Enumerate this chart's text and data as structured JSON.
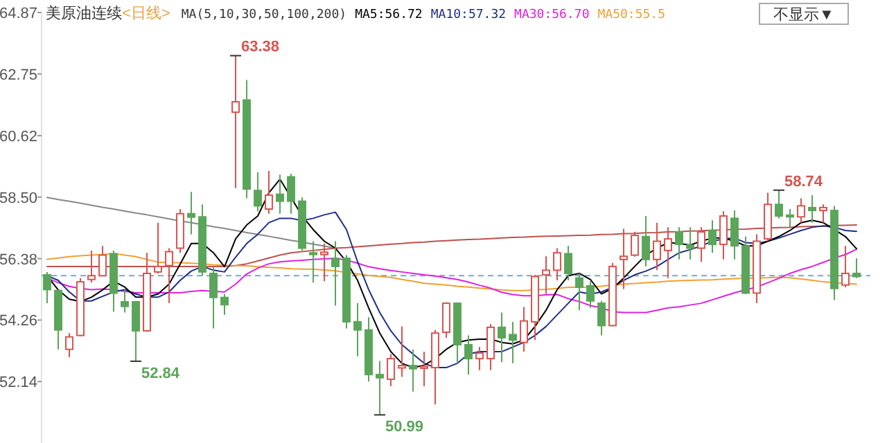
{
  "chart_data": {
    "type": "candlestick",
    "title": "美原油连续",
    "subtitle": "<日线>",
    "legend_title": "MA(5,10,30,50,100,200)",
    "legend": "top",
    "tick_labels": "y",
    "ylim": [
      50.02,
      64.87
    ],
    "yticks": [
      52.14,
      54.26,
      56.38,
      {
        "value": 58.5,
        "label": "58.50"
      },
      60.62,
      62.75,
      64.87
    ],
    "categories": [
      null,
      null,
      null,
      null,
      null,
      null,
      null,
      null,
      null,
      null,
      null,
      null,
      null,
      null,
      null,
      null,
      null,
      null,
      null,
      null,
      null,
      null,
      null,
      null,
      null,
      null,
      null,
      null,
      null,
      null,
      null,
      null,
      null,
      null,
      null,
      null,
      null,
      null,
      null,
      null,
      null,
      null,
      null,
      null,
      null,
      null,
      null,
      null,
      null,
      null,
      null,
      null,
      null,
      null,
      null,
      null,
      null,
      null,
      null,
      null,
      null,
      null,
      null,
      null,
      null,
      null,
      null,
      null,
      null,
      null,
      null,
      null,
      null,
      null
    ],
    "ohlc": [
      [
        55.82,
        55.92,
        54.84,
        55.31
      ],
      [
        55.28,
        55.3,
        53.25,
        53.92
      ],
      [
        53.25,
        53.81,
        52.98,
        53.68
      ],
      [
        53.73,
        55.71,
        53.7,
        55.58
      ],
      [
        55.66,
        56.66,
        55.55,
        55.79
      ],
      [
        55.79,
        56.82,
        55.79,
        56.5
      ],
      [
        56.55,
        56.66,
        54.55,
        55.19
      ],
      [
        54.89,
        55.31,
        54.52,
        54.73
      ],
      [
        54.89,
        54.92,
        52.84,
        53.89
      ],
      [
        53.89,
        56.58,
        53.86,
        55.87
      ],
      [
        55.92,
        57.62,
        55.87,
        56.11
      ],
      [
        56.14,
        56.74,
        54.84,
        56.62
      ],
      [
        56.74,
        58.09,
        56.58,
        57.93
      ],
      [
        57.93,
        58.68,
        57.22,
        57.81
      ],
      [
        57.82,
        58.25,
        55.79,
        55.92
      ],
      [
        55.87,
        56.11,
        53.97,
        55.04
      ],
      [
        55.04,
        55.16,
        54.44,
        54.79
      ],
      [
        61.43,
        63.38,
        58.81,
        61.79
      ],
      [
        61.85,
        62.54,
        58.46,
        58.78
      ],
      [
        58.73,
        59.36,
        58.01,
        58.2
      ],
      [
        58.09,
        59.41,
        57.93,
        58.57
      ],
      [
        58.6,
        59.28,
        57.93,
        58.36
      ],
      [
        59.2,
        59.31,
        57.93,
        58.36
      ],
      [
        58.36,
        58.49,
        56.66,
        56.74
      ],
      [
        56.58,
        56.98,
        55.55,
        56.52
      ],
      [
        56.52,
        56.9,
        55.6,
        56.6
      ],
      [
        56.39,
        56.98,
        54.76,
        56.11
      ],
      [
        56.39,
        56.5,
        53.97,
        54.2
      ],
      [
        54.2,
        54.84,
        53.01,
        53.92
      ],
      [
        53.92,
        54.36,
        52.14,
        52.38
      ],
      [
        52.38,
        52.85,
        50.99,
        52.27
      ],
      [
        52.22,
        53.09,
        51.98,
        52.93
      ],
      [
        52.61,
        54.04,
        52.3,
        52.69
      ],
      [
        52.69,
        53.25,
        51.79,
        52.58
      ],
      [
        52.6,
        53.17,
        51.98,
        52.66
      ],
      [
        52.62,
        53.92,
        51.35,
        53.81
      ],
      [
        53.84,
        54.87,
        53.65,
        54.84
      ],
      [
        54.84,
        54.87,
        52.77,
        53.41
      ],
      [
        53.41,
        53.73,
        52.38,
        52.93
      ],
      [
        52.93,
        53.33,
        52.53,
        53.12
      ],
      [
        52.93,
        54.12,
        52.53,
        54.01
      ],
      [
        54.01,
        54.52,
        52.81,
        53.65
      ],
      [
        53.76,
        54.2,
        52.77,
        53.57
      ],
      [
        53.49,
        54.71,
        53.17,
        54.23
      ],
      [
        54.2,
        55.82,
        53.57,
        55.76
      ],
      [
        55.82,
        56.46,
        55.16,
        55.98
      ],
      [
        55.98,
        56.74,
        55.63,
        56.58
      ],
      [
        56.55,
        56.82,
        55.63,
        55.87
      ],
      [
        55.71,
        55.87,
        54.6,
        55.39
      ],
      [
        55.44,
        55.6,
        54.68,
        54.92
      ],
      [
        54.84,
        54.92,
        53.73,
        54.07
      ],
      [
        54.07,
        56.23,
        54.04,
        56.11
      ],
      [
        56.35,
        57.41,
        55.33,
        56.46
      ],
      [
        56.5,
        57.3,
        56.45,
        57.18
      ],
      [
        57.14,
        57.85,
        56.11,
        56.35
      ],
      [
        56.35,
        57.62,
        55.98,
        56.98
      ],
      [
        56.66,
        57.46,
        55.71,
        57.06
      ],
      [
        57.3,
        57.46,
        56.35,
        56.87
      ],
      [
        56.85,
        57.46,
        56.35,
        56.74
      ],
      [
        56.74,
        57.46,
        56.27,
        57.3
      ],
      [
        57.35,
        57.7,
        56.58,
        56.87
      ],
      [
        56.87,
        58.01,
        56.35,
        57.85
      ],
      [
        57.77,
        58.04,
        56.35,
        56.82
      ],
      [
        56.82,
        57.14,
        55.16,
        55.19
      ],
      [
        55.19,
        57.22,
        54.84,
        56.98
      ],
      [
        57.06,
        58.65,
        56.98,
        58.25
      ],
      [
        58.25,
        58.74,
        57.77,
        57.85
      ],
      [
        57.88,
        58.09,
        57.46,
        57.82
      ],
      [
        57.82,
        58.46,
        57.62,
        58.2
      ],
      [
        58.14,
        58.57,
        57.62,
        58.04
      ],
      [
        58.04,
        58.25,
        57.62,
        58.14
      ],
      [
        58.04,
        58.2,
        54.95,
        55.35
      ],
      [
        55.47,
        56.82,
        55.39,
        55.87
      ],
      [
        55.87,
        56.39,
        55.71,
        55.76
      ]
    ],
    "series": [
      {
        "type": "line",
        "color": "#888888",
        "values": [
          58.49,
          58.42,
          58.36,
          58.29,
          58.22,
          58.15,
          58.09,
          58.02,
          57.95,
          57.89,
          57.82,
          57.75,
          57.68,
          57.62,
          57.55,
          57.48,
          57.42,
          57.35,
          57.28,
          57.21,
          57.15,
          57.08,
          57.01,
          56.95,
          56.88,
          56.81,
          56.74,
          null,
          null,
          null,
          null,
          null,
          null,
          null,
          null,
          null,
          null,
          null,
          null,
          null,
          null,
          null,
          null,
          null,
          null,
          null,
          null,
          null,
          null,
          null,
          null,
          null,
          null,
          null,
          null,
          null,
          null,
          null,
          null,
          null,
          null,
          null,
          null,
          null,
          null,
          null,
          null,
          null,
          null,
          null,
          null,
          null,
          null,
          null
        ]
      },
      {
        "type": "line",
        "color": "#c0504d",
        "values": [
          56.11,
          56.11,
          56.11,
          56.11,
          56.11,
          56.11,
          56.11,
          56.11,
          56.11,
          56.11,
          56.11,
          56.11,
          56.11,
          56.11,
          56.11,
          56.11,
          56.11,
          56.14,
          56.2,
          56.3,
          56.4,
          56.5,
          56.58,
          56.62,
          56.66,
          56.7,
          56.74,
          56.76,
          56.79,
          56.82,
          56.85,
          56.88,
          56.9,
          56.93,
          56.95,
          56.98,
          57.0,
          57.02,
          57.04,
          57.05,
          57.07,
          57.09,
          57.11,
          57.12,
          57.14,
          57.15,
          57.16,
          57.17,
          57.18,
          57.19,
          57.21,
          57.22,
          57.24,
          57.25,
          57.27,
          57.28,
          57.3,
          57.31,
          57.33,
          57.34,
          57.36,
          57.37,
          57.39,
          57.4,
          57.42,
          57.43,
          57.45,
          57.46,
          57.48,
          57.49,
          57.5,
          57.52,
          57.53,
          57.54
        ]
      },
      {
        "type": "line",
        "name": "MA50:55.5",
        "color": "#f0a030",
        "values": [
          56.35,
          56.4,
          56.45,
          56.48,
          56.5,
          56.52,
          56.55,
          56.5,
          56.45,
          56.35,
          56.26,
          56.24,
          56.24,
          56.22,
          56.2,
          56.17,
          56.15,
          56.14,
          56.13,
          56.1,
          56.08,
          56.06,
          56.03,
          56.02,
          56.01,
          55.99,
          55.96,
          55.9,
          55.85,
          55.8,
          55.77,
          55.73,
          55.66,
          55.6,
          55.53,
          55.5,
          55.47,
          55.43,
          55.4,
          55.36,
          55.33,
          55.3,
          55.28,
          55.28,
          55.3,
          55.32,
          55.35,
          55.39,
          55.39,
          55.4,
          55.43,
          55.47,
          55.5,
          55.52,
          55.55,
          55.57,
          55.6,
          55.62,
          55.63,
          55.64,
          55.65,
          55.67,
          55.69,
          55.7,
          55.71,
          55.72,
          55.74,
          55.72,
          55.68,
          55.63,
          55.58,
          55.55,
          55.52,
          55.5
        ]
      },
      {
        "type": "line",
        "name": "MA30:56.70",
        "color": "#e020e0",
        "values": [
          55.71,
          55.55,
          55.42,
          55.35,
          55.31,
          55.33,
          55.31,
          55.25,
          55.2,
          55.2,
          55.2,
          55.2,
          55.2,
          55.25,
          55.28,
          55.25,
          55.23,
          55.5,
          55.85,
          56.05,
          56.2,
          56.27,
          56.3,
          56.32,
          56.35,
          56.37,
          56.39,
          56.33,
          56.22,
          56.1,
          56.03,
          55.97,
          55.92,
          55.87,
          55.82,
          55.78,
          55.72,
          55.66,
          55.57,
          55.46,
          55.36,
          55.22,
          55.14,
          55.1,
          55.1,
          55.13,
          55.14,
          55.0,
          54.9,
          54.76,
          54.68,
          54.55,
          54.52,
          54.52,
          54.52,
          54.6,
          54.68,
          54.72,
          54.78,
          54.84,
          54.96,
          55.08,
          55.2,
          55.3,
          55.4,
          55.55,
          55.7,
          55.87,
          56.0,
          56.11,
          56.25,
          56.4,
          56.52,
          56.7
        ]
      },
      {
        "type": "line",
        "name": "MA10:57.32",
        "color": "#1f2d86",
        "values": [
          55.79,
          55.63,
          55.23,
          54.92,
          54.92,
          55.08,
          55.23,
          55.31,
          55.16,
          55.05,
          55.05,
          55.23,
          55.63,
          55.95,
          56.11,
          55.98,
          55.92,
          56.43,
          56.9,
          57.22,
          57.62,
          57.77,
          57.77,
          57.69,
          57.77,
          57.89,
          57.98,
          57.38,
          56.27,
          55.31,
          54.52,
          53.89,
          53.41,
          53.09,
          52.77,
          52.62,
          52.62,
          52.77,
          53.09,
          53.17,
          53.17,
          53.17,
          53.33,
          53.49,
          53.73,
          54.04,
          54.44,
          54.84,
          55.23,
          55.16,
          55.23,
          55.39,
          55.63,
          55.82,
          55.95,
          56.11,
          56.35,
          56.58,
          56.69,
          56.82,
          56.98,
          57.06,
          57.09,
          56.93,
          56.9,
          56.98,
          57.09,
          57.22,
          57.35,
          57.46,
          57.51,
          57.46,
          57.35,
          57.32
        ]
      },
      {
        "type": "line",
        "name": "MA5:56.72",
        "color": "#000000",
        "values": [
          55.79,
          55.3,
          54.98,
          54.9,
          55.05,
          55.3,
          55.6,
          55.4,
          55.05,
          55.05,
          55.16,
          55.5,
          56.19,
          56.9,
          56.9,
          56.58,
          56.1,
          57.06,
          57.54,
          57.85,
          58.65,
          59.12,
          58.49,
          57.85,
          57.38,
          56.98,
          56.74,
          56.27,
          55.63,
          54.68,
          53.81,
          53.17,
          52.77,
          52.62,
          52.7,
          52.93,
          53.25,
          53.49,
          53.57,
          53.6,
          53.6,
          53.49,
          53.44,
          53.57,
          54.04,
          54.6,
          55.31,
          55.79,
          55.87,
          55.66,
          55.16,
          55.35,
          55.71,
          56.11,
          56.5,
          56.74,
          56.93,
          56.9,
          56.85,
          56.98,
          57.09,
          57.09,
          56.98,
          56.82,
          56.82,
          56.98,
          57.14,
          57.35,
          57.62,
          57.7,
          57.62,
          57.38,
          57.14,
          56.72
        ]
      }
    ],
    "ref_lines": [
      {
        "axis": "y",
        "value": 55.79,
        "color": "#6fa8dc",
        "line_style": "dashed"
      }
    ],
    "annotations": [
      "63.38",
      "52.84",
      "50.99",
      "58.74",
      "不显示▼"
    ]
  }
}
